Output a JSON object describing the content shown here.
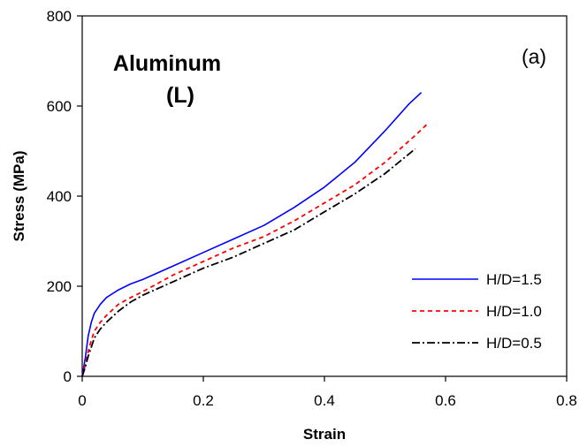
{
  "chart_data": {
    "type": "line",
    "title": "",
    "xlabel": "Strain",
    "ylabel": "Stress (MPa)",
    "xlim": [
      0,
      0.8
    ],
    "ylim": [
      0,
      800
    ],
    "xticks": [
      0,
      0.2,
      0.4,
      0.6,
      0.8
    ],
    "xtick_labels": [
      "0",
      "0.2",
      "0.4",
      "0.6",
      "0.8"
    ],
    "yticks": [
      0,
      200,
      400,
      600,
      800
    ],
    "ytick_labels": [
      "0",
      "200",
      "400",
      "600",
      "800"
    ],
    "grid": false,
    "legend_position": "bottom-right",
    "annotations": {
      "material_line1": "Aluminum",
      "material_line2": "(L)",
      "panel_label": "(a)"
    },
    "series": [
      {
        "name": "H/D=1.5",
        "color": "#0000ff",
        "dash": "solid",
        "x": [
          0,
          0.005,
          0.01,
          0.015,
          0.02,
          0.03,
          0.04,
          0.06,
          0.08,
          0.1,
          0.15,
          0.2,
          0.25,
          0.3,
          0.35,
          0.4,
          0.45,
          0.5,
          0.54,
          0.56
        ],
        "y": [
          0,
          40,
          90,
          120,
          140,
          160,
          175,
          192,
          205,
          215,
          245,
          275,
          305,
          335,
          375,
          420,
          475,
          545,
          605,
          630
        ]
      },
      {
        "name": "H/D=1.0",
        "color": "#ff0000",
        "dash": "dashed",
        "x": [
          0,
          0.005,
          0.01,
          0.015,
          0.02,
          0.03,
          0.04,
          0.06,
          0.08,
          0.1,
          0.15,
          0.2,
          0.25,
          0.3,
          0.35,
          0.4,
          0.45,
          0.5,
          0.55,
          0.57
        ],
        "y": [
          0,
          25,
          55,
          80,
          100,
          120,
          135,
          160,
          175,
          188,
          225,
          255,
          285,
          310,
          345,
          385,
          425,
          475,
          535,
          560
        ]
      },
      {
        "name": "H/D=0.5",
        "color": "#000000",
        "dash": "dashdot",
        "x": [
          0,
          0.005,
          0.01,
          0.015,
          0.02,
          0.03,
          0.04,
          0.06,
          0.08,
          0.1,
          0.15,
          0.2,
          0.25,
          0.3,
          0.35,
          0.4,
          0.45,
          0.5,
          0.55
        ],
        "y": [
          0,
          20,
          45,
          65,
          85,
          105,
          120,
          145,
          165,
          180,
          210,
          240,
          265,
          295,
          325,
          365,
          405,
          450,
          505
        ]
      }
    ]
  }
}
